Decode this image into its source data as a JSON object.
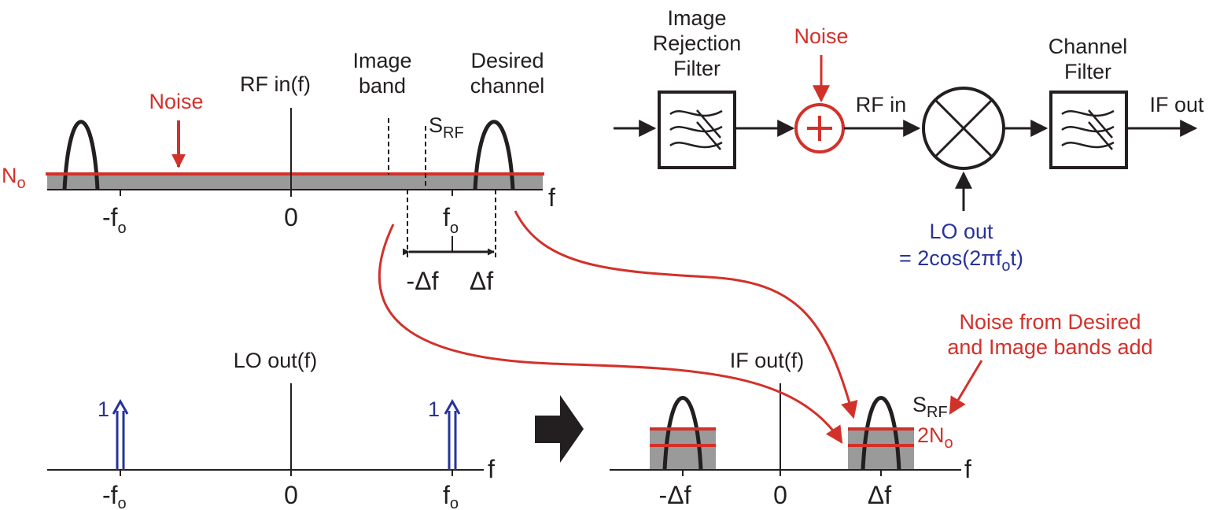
{
  "colors": {
    "noise": "#d2312a",
    "lo": "#27339a",
    "ink": "#231f20",
    "noise_fill": "#9a9a9a"
  },
  "icons": [
    "filter-icon",
    "adder-icon",
    "mixer-icon",
    "arrow-right-icon"
  ],
  "rf_spectrum": {
    "title": "RF in(f)",
    "noise_label": "Noise",
    "noise_level": {
      "main": "N",
      "sub": "o"
    },
    "image_band": [
      "Image",
      "band"
    ],
    "desired_channel": [
      "Desired",
      "channel"
    ],
    "signal": {
      "main": "S",
      "sub": "RF"
    },
    "axis_var": "f",
    "tick_neg_fo": {
      "main": "-f",
      "sub": "o"
    },
    "tick_zero": "0",
    "tick_fo": {
      "main": "f",
      "sub": "o"
    },
    "neg_delta_f": "-Δf",
    "delta_f": "Δf"
  },
  "block_diagram": {
    "image_filter": [
      "Image",
      "Rejection",
      "Filter"
    ],
    "noise": "Noise",
    "rf_in": "RF in",
    "channel_filter": [
      "Channel",
      "Filter"
    ],
    "if_out": "IF out",
    "lo_out": "LO out",
    "lo_eq": {
      "pre": "= 2cos(2π",
      "main": "f",
      "sub": "o",
      "post": "t)"
    }
  },
  "lo_spectrum": {
    "title": "LO out(f)",
    "impulse_left": "1",
    "impulse_right": "1",
    "axis_var": "f",
    "tick_neg_fo": {
      "main": "-f",
      "sub": "o"
    },
    "tick_zero": "0",
    "tick_fo": {
      "main": "f",
      "sub": "o"
    }
  },
  "if_spectrum": {
    "title": "IF out(f)",
    "signal": {
      "main": "S",
      "sub": "RF"
    },
    "noise_level": {
      "main": "2N",
      "sub": "o"
    },
    "axis_var": "f",
    "tick_neg": "-Δf",
    "tick_zero": "0",
    "tick_pos": "Δf",
    "annotation": [
      "Noise from Desired",
      "and Image bands add"
    ]
  }
}
